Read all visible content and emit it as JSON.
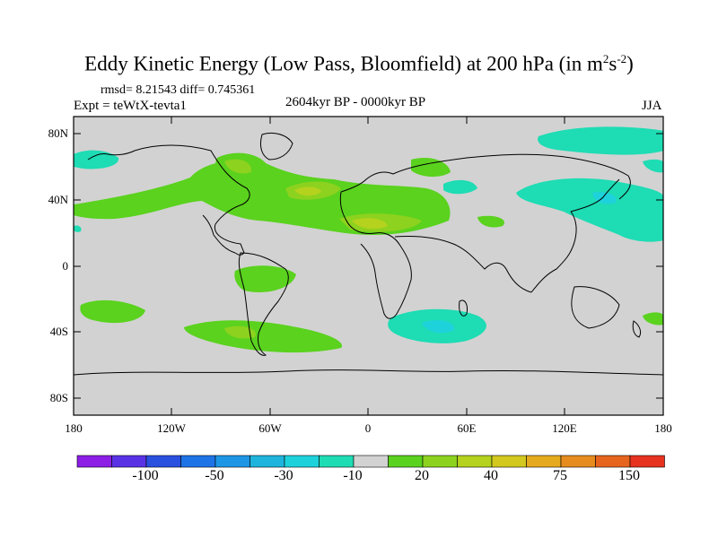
{
  "title": {
    "main": "Eddy Kinetic Energy (Low Pass, Bloomfield) at 200 hPa (in m",
    "sup1": "2",
    "mid": "s",
    "sup2": "-2",
    "end": ")"
  },
  "stats": "rmsd= 8.21543 diff= 0.745361",
  "experiment": "Expt = teWtX-tevta1",
  "center_label": "2604kyr BP - 0000kyr BP",
  "season": "JJA",
  "lat_labels": [
    "80N",
    "40N",
    "0",
    "40S",
    "80S"
  ],
  "lon_labels": [
    "180",
    "120W",
    "60W",
    "0",
    "60E",
    "120E",
    "180"
  ],
  "colorbar": {
    "colors": [
      "#8c1ee6",
      "#5a32e6",
      "#2a50e0",
      "#1e73e6",
      "#1e96e6",
      "#1eb4dc",
      "#1ed2dc",
      "#1edcb4",
      "#d2d2d2",
      "#5ad21e",
      "#8cd21e",
      "#b4d21e",
      "#d2c81e",
      "#e6aa1e",
      "#e68c1e",
      "#e6641e",
      "#e6321e"
    ],
    "labels": [
      "-100",
      "-50",
      "-30",
      "-10",
      "20",
      "40",
      "75",
      "150"
    ]
  },
  "map_colors": {
    "background": "#d2d2d2",
    "pos_light": "#5ad21e",
    "pos_mid": "#8cd21e",
    "pos_strong": "#b4d21e",
    "neg_light": "#1edcb4",
    "neg_mid": "#1ed2dc",
    "coast": "#000000"
  }
}
